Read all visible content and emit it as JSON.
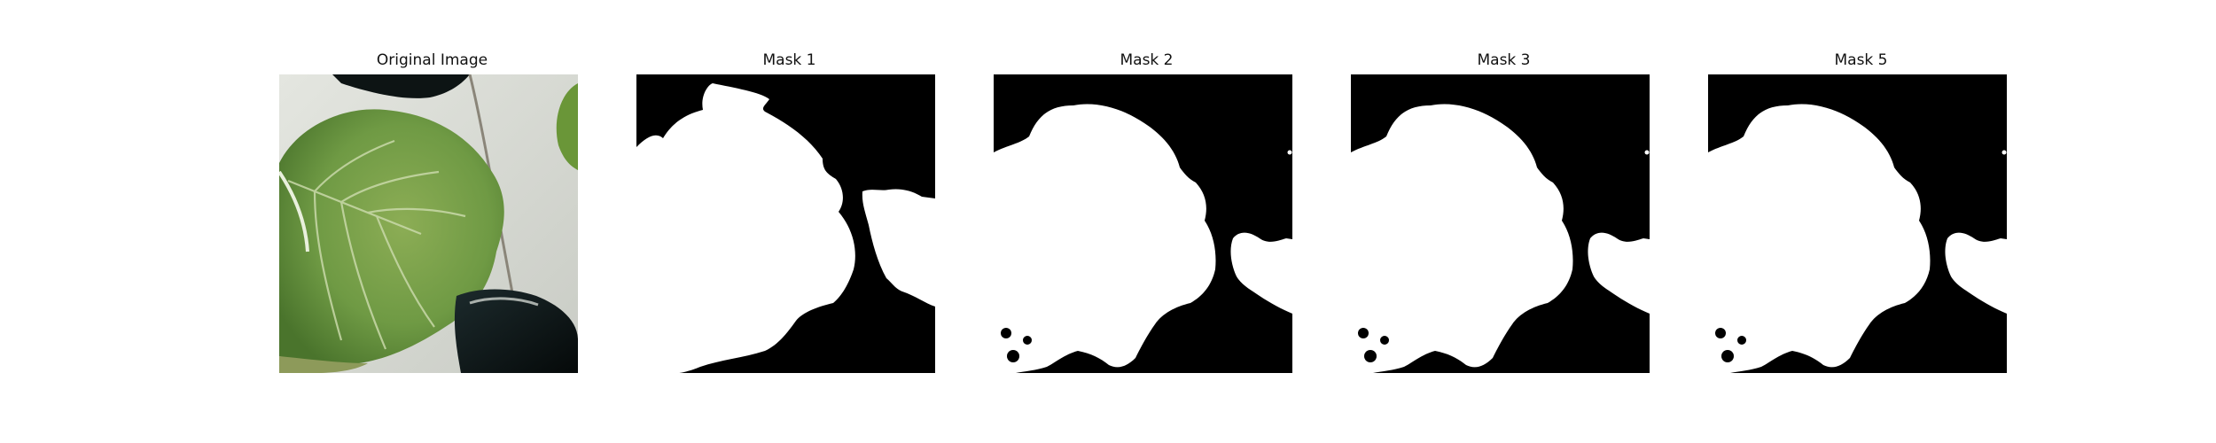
{
  "figure": {
    "panels": [
      {
        "title": "Original Image",
        "kind": "photo"
      },
      {
        "title": "Mask 1",
        "kind": "mask"
      },
      {
        "title": "Mask 2",
        "kind": "mask"
      },
      {
        "title": "Mask 3",
        "kind": "mask"
      },
      {
        "title": "Mask 5",
        "kind": "mask"
      }
    ]
  },
  "colors": {
    "figure_background": "#ffffff",
    "mask_foreground": "#ffffff",
    "mask_background": "#000000",
    "leaf_green": "#6f9a44",
    "leaf_dark": "#3f6b26",
    "backdrop_gray": "#d9dbd5",
    "pot_black": "#0b1213"
  }
}
